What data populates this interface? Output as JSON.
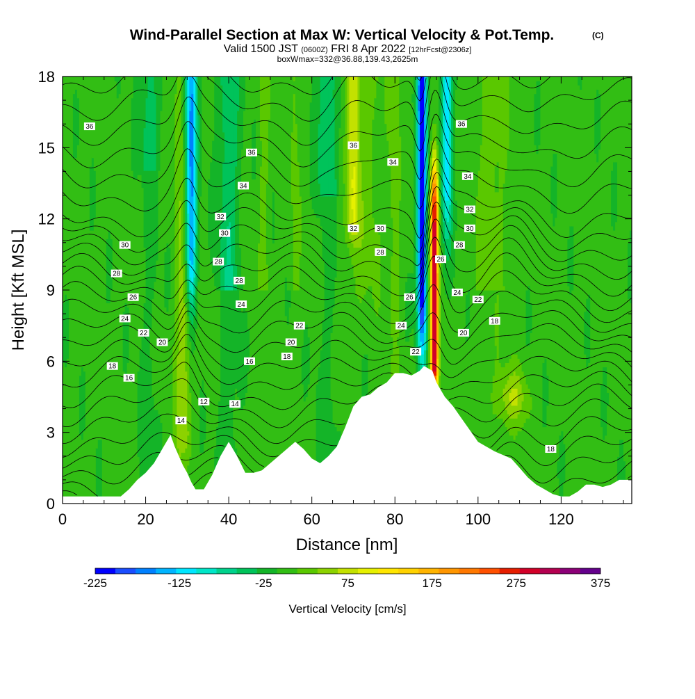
{
  "chart_data": {
    "type": "heatmap",
    "title": "Wind-Parallel Section at Max W: Vertical Velocity & Pot.Temp.",
    "title_mark": "(C)",
    "subtitle_parts": [
      "Valid 1500 JST ",
      "(0600Z)",
      " FRI 8 Apr 2022 ",
      "[12hrFcst@2306z]"
    ],
    "annotation": "boxWmax=332@36.88,139.43,2625m",
    "xlabel": "Distance [nm]",
    "ylabel": "Height [Kft MSL]",
    "xlim": [
      0,
      137
    ],
    "ylim": [
      0,
      18
    ],
    "x_ticks": [
      0,
      20,
      40,
      60,
      80,
      100,
      120
    ],
    "y_ticks": [
      0,
      3,
      6,
      9,
      12,
      15,
      18
    ],
    "colorbar": {
      "label": "Vertical Velocity [cm/s]",
      "min": -225,
      "max": 375,
      "step": 25,
      "tick_labels": [
        -225,
        -125,
        -25,
        75,
        175,
        275,
        375
      ],
      "colors": [
        "#0000ff",
        "#1a4dff",
        "#0080ff",
        "#00b4ff",
        "#00e6ff",
        "#00e6c8",
        "#00d28c",
        "#00c35a",
        "#14b428",
        "#32be14",
        "#5ac800",
        "#8cd200",
        "#c3e100",
        "#e6f000",
        "#ffe600",
        "#ffd200",
        "#ffb400",
        "#ff9600",
        "#ff7800",
        "#ff5000",
        "#e61e00",
        "#d20028",
        "#b40050",
        "#8c0078",
        "#64008c"
      ]
    },
    "terrain_profile": {
      "x": [
        0,
        10,
        14,
        16,
        18,
        20,
        22,
        26,
        27,
        28,
        29,
        30,
        31,
        32,
        34,
        36,
        38,
        40,
        42,
        44,
        46,
        48,
        50,
        52,
        54,
        56,
        58,
        60,
        61,
        62,
        64,
        66,
        68,
        70,
        72,
        74,
        76,
        78,
        80,
        82,
        84,
        86,
        87,
        88,
        89,
        90,
        91,
        92,
        94,
        96,
        98,
        100,
        104,
        108,
        110,
        112,
        114,
        116,
        118,
        120,
        122,
        124,
        126,
        128,
        130,
        132,
        134,
        137
      ],
      "y": [
        0.3,
        0.3,
        0.3,
        0.6,
        1.0,
        1.3,
        1.7,
        2.9,
        2.4,
        2.0,
        1.6,
        1.3,
        0.9,
        0.6,
        0.6,
        1.2,
        2.0,
        2.6,
        2.0,
        1.3,
        1.3,
        1.4,
        1.7,
        2.0,
        2.3,
        2.6,
        2.3,
        1.9,
        1.8,
        1.7,
        2.0,
        2.4,
        3.2,
        4.1,
        4.5,
        4.6,
        4.9,
        5.1,
        5.5,
        5.5,
        5.4,
        5.6,
        5.8,
        5.7,
        5.6,
        5.1,
        4.8,
        4.5,
        4.1,
        3.6,
        3.1,
        2.6,
        2.2,
        1.9,
        1.5,
        1.1,
        0.8,
        0.6,
        0.4,
        0.3,
        0.3,
        0.5,
        0.8,
        0.8,
        0.7,
        0.8,
        1.0,
        1.0
      ]
    },
    "updraft_cores": [
      {
        "x": 89.5,
        "w_max": 332,
        "height_range": [
          5.8,
          12.0
        ]
      },
      {
        "x": 29.5,
        "w_max": 60,
        "height_range": [
          3.0,
          8.0
        ]
      },
      {
        "x": 70.0,
        "w_max": 80,
        "height_range": [
          12.0,
          18.0
        ]
      }
    ],
    "downdraft_cores": [
      {
        "x": 86.5,
        "w_min": -225,
        "height_range": [
          9.0,
          18.0
        ]
      },
      {
        "x": 31.0,
        "w_min": -150,
        "height_range": [
          11.0,
          18.0
        ]
      },
      {
        "x": 92.5,
        "w_min": -120,
        "height_range": [
          14.0,
          18.0
        ]
      }
    ],
    "contour_levels": [
      12,
      14,
      16,
      18,
      20,
      22,
      24,
      26,
      28,
      30,
      32,
      34,
      36
    ],
    "contour_labels": [
      {
        "value": "36",
        "x": 6.5,
        "y": 15.9
      },
      {
        "value": "36",
        "x": 45.5,
        "y": 14.8
      },
      {
        "value": "36",
        "x": 70.0,
        "y": 15.1
      },
      {
        "value": "36",
        "x": 96.0,
        "y": 16.0
      },
      {
        "value": "34",
        "x": 43.5,
        "y": 13.4
      },
      {
        "value": "34",
        "x": 79.5,
        "y": 14.4
      },
      {
        "value": "34",
        "x": 97.5,
        "y": 13.8
      },
      {
        "value": "32",
        "x": 38.0,
        "y": 12.1
      },
      {
        "value": "32",
        "x": 70.0,
        "y": 11.6
      },
      {
        "value": "32",
        "x": 98.0,
        "y": 12.4
      },
      {
        "value": "30",
        "x": 15.0,
        "y": 10.9
      },
      {
        "value": "30",
        "x": 39.0,
        "y": 11.4
      },
      {
        "value": "30",
        "x": 76.5,
        "y": 11.6
      },
      {
        "value": "30",
        "x": 98.0,
        "y": 11.6
      },
      {
        "value": "28",
        "x": 13.0,
        "y": 9.7
      },
      {
        "value": "28",
        "x": 37.5,
        "y": 10.2
      },
      {
        "value": "28",
        "x": 42.5,
        "y": 9.4
      },
      {
        "value": "28",
        "x": 76.5,
        "y": 10.6
      },
      {
        "value": "28",
        "x": 95.5,
        "y": 10.9
      },
      {
        "value": "26",
        "x": 17.0,
        "y": 8.7
      },
      {
        "value": "26",
        "x": 83.5,
        "y": 8.7
      },
      {
        "value": "26",
        "x": 91.0,
        "y": 10.3
      },
      {
        "value": "24",
        "x": 15.0,
        "y": 7.8
      },
      {
        "value": "24",
        "x": 43.0,
        "y": 8.4
      },
      {
        "value": "24",
        "x": 81.5,
        "y": 7.5
      },
      {
        "value": "24",
        "x": 95.0,
        "y": 8.9
      },
      {
        "value": "22",
        "x": 19.5,
        "y": 7.2
      },
      {
        "value": "22",
        "x": 57.0,
        "y": 7.5
      },
      {
        "value": "22",
        "x": 85.0,
        "y": 6.4
      },
      {
        "value": "22",
        "x": 100.0,
        "y": 8.6
      },
      {
        "value": "20",
        "x": 24.0,
        "y": 6.8
      },
      {
        "value": "20",
        "x": 55.0,
        "y": 6.8
      },
      {
        "value": "20",
        "x": 96.5,
        "y": 7.2
      },
      {
        "value": "18",
        "x": 12.0,
        "y": 5.8
      },
      {
        "value": "18",
        "x": 54.0,
        "y": 6.2
      },
      {
        "value": "18",
        "x": 104.0,
        "y": 7.7
      },
      {
        "value": "18",
        "x": 117.5,
        "y": 2.3
      },
      {
        "value": "16",
        "x": 16.0,
        "y": 5.3
      },
      {
        "value": "16",
        "x": 45.0,
        "y": 6.0
      },
      {
        "value": "14",
        "x": 28.5,
        "y": 3.5
      },
      {
        "value": "14",
        "x": 41.5,
        "y": 4.2
      },
      {
        "value": "12",
        "x": 34.0,
        "y": 4.3
      }
    ]
  }
}
